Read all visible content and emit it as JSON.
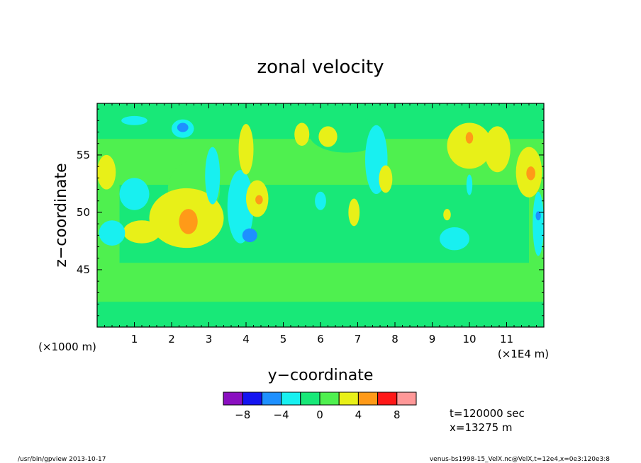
{
  "chart_data": {
    "type": "heatmap",
    "title": "zonal velocity",
    "xlabel": "y−coordinate",
    "ylabel": "z−coordinate",
    "x_unit_left": "(×1000 m)",
    "x_unit_right": "(×1E4 m)",
    "xlim": [
      0,
      12
    ],
    "ylim": [
      40,
      59.5
    ],
    "x_ticks": [
      1,
      2,
      3,
      4,
      5,
      6,
      7,
      8,
      9,
      10,
      11
    ],
    "y_ticks": [
      45,
      50,
      55
    ],
    "x_tick_labels": [
      "1",
      "2",
      "3",
      "4",
      "5",
      "6",
      "7",
      "8",
      "9",
      "10",
      "11"
    ],
    "y_tick_labels": [
      "45",
      "50",
      "55"
    ],
    "background_level_color": "#4ff04f",
    "levels": [
      {
        "min": -10,
        "max": -8,
        "color": "#8a0fc0"
      },
      {
        "min": -8,
        "max": -6,
        "color": "#1414f0"
      },
      {
        "min": -6,
        "max": -4,
        "color": "#1e90ff"
      },
      {
        "min": -4,
        "max": -2,
        "color": "#18f0f0"
      },
      {
        "min": -2,
        "max": 0,
        "color": "#18e878"
      },
      {
        "min": 0,
        "max": 2,
        "color": "#4ff04f"
      },
      {
        "min": 2,
        "max": 4,
        "color": "#e8f018"
      },
      {
        "min": 4,
        "max": 6,
        "color": "#ff9a18"
      },
      {
        "min": 6,
        "max": 8,
        "color": "#ff1818"
      },
      {
        "min": 8,
        "max": 10,
        "color": "#ff9898"
      }
    ],
    "colorbar_labels": [
      "−8",
      "−4",
      "0",
      "4",
      "8"
    ],
    "colorbar_label_values": [
      -8,
      -4,
      0,
      4,
      8
    ],
    "features": [
      {
        "kind": "band",
        "x": 0,
        "y": 39.9,
        "w": 12,
        "h": 2.3,
        "level": 4
      },
      {
        "kind": "band",
        "x": 0.6,
        "y": 45.6,
        "w": 11.0,
        "h": 6.8,
        "level": 4
      },
      {
        "kind": "band",
        "x": 0,
        "y": 56.4,
        "w": 12,
        "h": 3.2,
        "level": 4
      },
      {
        "kind": "ellipse",
        "cx": 6.7,
        "cy": 56.8,
        "rx": 1.0,
        "ry": 1.6,
        "level": 4
      },
      {
        "kind": "ellipse",
        "cx": 2.6,
        "cy": 52.0,
        "rx": 0.7,
        "ry": 2.5,
        "level": 5
      },
      {
        "kind": "ellipse",
        "cx": 2.4,
        "cy": 49.5,
        "rx": 1.0,
        "ry": 2.6,
        "level": 6
      },
      {
        "kind": "ellipse",
        "cx": 2.45,
        "cy": 49.2,
        "rx": 0.25,
        "ry": 1.1,
        "level": 7
      },
      {
        "kind": "ellipse",
        "cx": 1.2,
        "cy": 48.3,
        "rx": 0.5,
        "ry": 1.0,
        "level": 6
      },
      {
        "kind": "ellipse",
        "cx": 0.4,
        "cy": 48.2,
        "rx": 0.35,
        "ry": 1.1,
        "level": 3
      },
      {
        "kind": "ellipse",
        "cx": 0.25,
        "cy": 53.5,
        "rx": 0.25,
        "ry": 1.5,
        "level": 6
      },
      {
        "kind": "ellipse",
        "cx": 1.0,
        "cy": 51.6,
        "rx": 0.4,
        "ry": 1.4,
        "level": 3
      },
      {
        "kind": "ellipse",
        "cx": 1.0,
        "cy": 58.0,
        "rx": 0.35,
        "ry": 0.4,
        "level": 3
      },
      {
        "kind": "ellipse",
        "cx": 2.3,
        "cy": 57.3,
        "rx": 0.3,
        "ry": 0.8,
        "level": 3
      },
      {
        "kind": "ellipse",
        "cx": 2.3,
        "cy": 57.4,
        "rx": 0.15,
        "ry": 0.4,
        "level": 2
      },
      {
        "kind": "ellipse",
        "cx": 3.1,
        "cy": 53.2,
        "rx": 0.2,
        "ry": 2.5,
        "level": 3
      },
      {
        "kind": "ellipse",
        "cx": 3.85,
        "cy": 50.5,
        "rx": 0.35,
        "ry": 3.2,
        "level": 3
      },
      {
        "kind": "ellipse",
        "cx": 4.1,
        "cy": 48.0,
        "rx": 0.2,
        "ry": 0.6,
        "level": 2
      },
      {
        "kind": "ellipse",
        "cx": 4.0,
        "cy": 55.5,
        "rx": 0.2,
        "ry": 2.2,
        "level": 6
      },
      {
        "kind": "ellipse",
        "cx": 4.3,
        "cy": 51.2,
        "rx": 0.3,
        "ry": 1.6,
        "level": 6
      },
      {
        "kind": "ellipse",
        "cx": 4.35,
        "cy": 51.1,
        "rx": 0.1,
        "ry": 0.4,
        "level": 7
      },
      {
        "kind": "ellipse",
        "cx": 5.5,
        "cy": 56.8,
        "rx": 0.2,
        "ry": 1.0,
        "level": 6
      },
      {
        "kind": "ellipse",
        "cx": 6.0,
        "cy": 51.0,
        "rx": 0.15,
        "ry": 0.8,
        "level": 3
      },
      {
        "kind": "ellipse",
        "cx": 6.2,
        "cy": 56.6,
        "rx": 0.25,
        "ry": 0.9,
        "level": 6
      },
      {
        "kind": "ellipse",
        "cx": 7.5,
        "cy": 54.6,
        "rx": 0.3,
        "ry": 3.0,
        "level": 3
      },
      {
        "kind": "ellipse",
        "cx": 7.75,
        "cy": 52.9,
        "rx": 0.18,
        "ry": 1.2,
        "level": 6
      },
      {
        "kind": "ellipse",
        "cx": 6.9,
        "cy": 50.0,
        "rx": 0.15,
        "ry": 1.2,
        "level": 6
      },
      {
        "kind": "ellipse",
        "cx": 9.4,
        "cy": 49.8,
        "rx": 0.1,
        "ry": 0.5,
        "level": 6
      },
      {
        "kind": "ellipse",
        "cx": 10.0,
        "cy": 55.8,
        "rx": 0.6,
        "ry": 2.0,
        "level": 6
      },
      {
        "kind": "ellipse",
        "cx": 10.0,
        "cy": 56.5,
        "rx": 0.1,
        "ry": 0.5,
        "level": 7
      },
      {
        "kind": "ellipse",
        "cx": 10.75,
        "cy": 55.5,
        "rx": 0.35,
        "ry": 2.0,
        "level": 6
      },
      {
        "kind": "ellipse",
        "cx": 11.6,
        "cy": 53.5,
        "rx": 0.35,
        "ry": 2.2,
        "level": 6
      },
      {
        "kind": "ellipse",
        "cx": 11.65,
        "cy": 53.4,
        "rx": 0.12,
        "ry": 0.6,
        "level": 7
      },
      {
        "kind": "ellipse",
        "cx": 10.0,
        "cy": 52.4,
        "rx": 0.08,
        "ry": 0.9,
        "level": 3
      },
      {
        "kind": "ellipse",
        "cx": 9.6,
        "cy": 47.7,
        "rx": 0.4,
        "ry": 1.0,
        "level": 3
      },
      {
        "kind": "ellipse",
        "cx": 11.85,
        "cy": 49.0,
        "rx": 0.15,
        "ry": 2.8,
        "level": 3
      },
      {
        "kind": "ellipse",
        "cx": 11.85,
        "cy": 49.7,
        "rx": 0.07,
        "ry": 0.4,
        "level": 2
      }
    ]
  },
  "annotations": {
    "time": "t=120000 sec",
    "position": "x=13275 m"
  },
  "footer": {
    "left": "/usr/bin/gpview  2013-10-17",
    "right": "venus-bs1998-15_VelX.nc@VelX,t=12e4,x=0e3:120e3:8"
  }
}
